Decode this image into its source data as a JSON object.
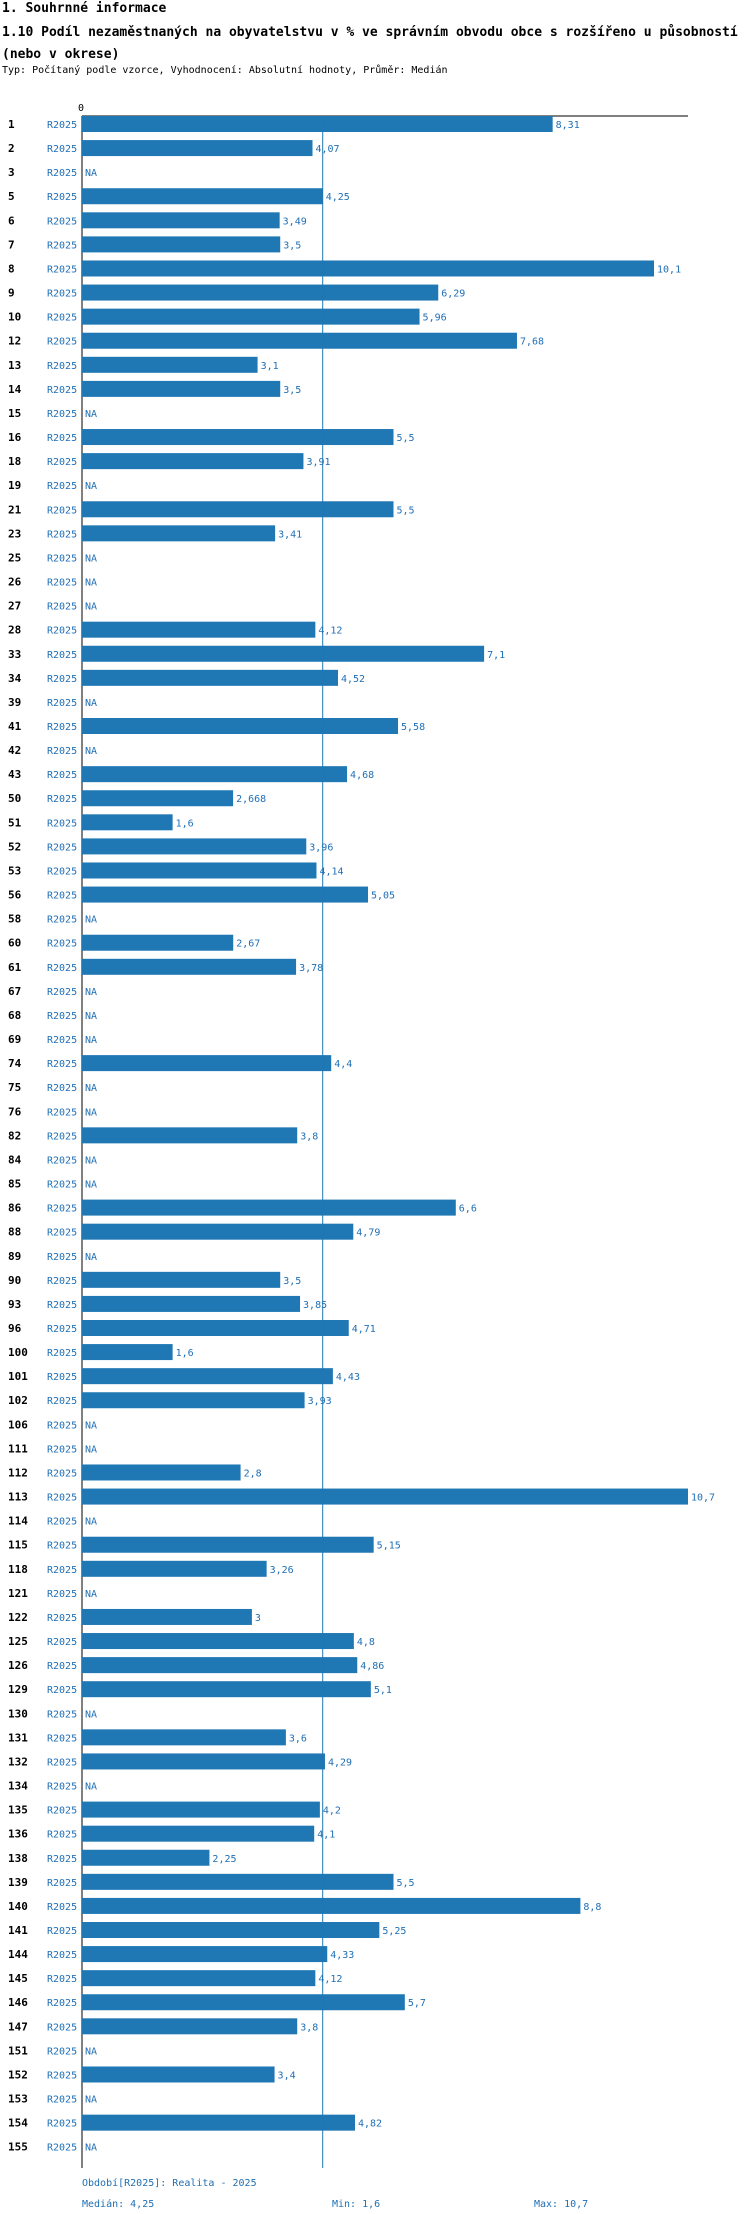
{
  "header": {
    "section": "1. Souhrnné informace",
    "title": "1.10 Podíl nezaměstnaných na obyvatelstvu v % ve správním obvodu obce s rozšířeno u působností (nebo v okrese)",
    "subtitle": "Typ: Počítaný podle vzorce, Vyhodnocení: Absolutní hodnoty, Průměr: Medián"
  },
  "footer": {
    "period": "Období[R2025]: Realita - 2025",
    "median": "Medián: 4,25",
    "min": "Min: 1,6",
    "max": "Max: 10,7"
  },
  "colors": {
    "bar": "#1f77b4",
    "text_blue": "#1f6fb5",
    "median_line": "#1f77b4"
  },
  "chart_data": {
    "type": "bar",
    "orientation": "horizontal",
    "axis_zero_label": "0",
    "period_label": "R2025",
    "median": 4.25,
    "min": 1.6,
    "max": 10.7,
    "xlim": [
      0,
      10.7
    ],
    "rows": [
      {
        "id": "1",
        "value": 8.31,
        "label": "8,31"
      },
      {
        "id": "2",
        "value": 4.07,
        "label": "4,07"
      },
      {
        "id": "3",
        "value": null,
        "label": "NA"
      },
      {
        "id": "5",
        "value": 4.25,
        "label": "4,25"
      },
      {
        "id": "6",
        "value": 3.49,
        "label": "3,49"
      },
      {
        "id": "7",
        "value": 3.5,
        "label": "3,5"
      },
      {
        "id": "8",
        "value": 10.1,
        "label": "10,1"
      },
      {
        "id": "9",
        "value": 6.29,
        "label": "6,29"
      },
      {
        "id": "10",
        "value": 5.96,
        "label": "5,96"
      },
      {
        "id": "12",
        "value": 7.68,
        "label": "7,68"
      },
      {
        "id": "13",
        "value": 3.1,
        "label": "3,1"
      },
      {
        "id": "14",
        "value": 3.5,
        "label": "3,5"
      },
      {
        "id": "15",
        "value": null,
        "label": "NA"
      },
      {
        "id": "16",
        "value": 5.5,
        "label": "5,5"
      },
      {
        "id": "18",
        "value": 3.91,
        "label": "3,91"
      },
      {
        "id": "19",
        "value": null,
        "label": "NA"
      },
      {
        "id": "21",
        "value": 5.5,
        "label": "5,5"
      },
      {
        "id": "23",
        "value": 3.41,
        "label": "3,41"
      },
      {
        "id": "25",
        "value": null,
        "label": "NA"
      },
      {
        "id": "26",
        "value": null,
        "label": "NA"
      },
      {
        "id": "27",
        "value": null,
        "label": "NA"
      },
      {
        "id": "28",
        "value": 4.12,
        "label": "4,12"
      },
      {
        "id": "33",
        "value": 7.1,
        "label": "7,1"
      },
      {
        "id": "34",
        "value": 4.52,
        "label": "4,52"
      },
      {
        "id": "39",
        "value": null,
        "label": "NA"
      },
      {
        "id": "41",
        "value": 5.58,
        "label": "5,58"
      },
      {
        "id": "42",
        "value": null,
        "label": "NA"
      },
      {
        "id": "43",
        "value": 4.68,
        "label": "4,68"
      },
      {
        "id": "50",
        "value": 2.668,
        "label": "2,668"
      },
      {
        "id": "51",
        "value": 1.6,
        "label": "1,6"
      },
      {
        "id": "52",
        "value": 3.96,
        "label": "3,96"
      },
      {
        "id": "53",
        "value": 4.14,
        "label": "4,14"
      },
      {
        "id": "56",
        "value": 5.05,
        "label": "5,05"
      },
      {
        "id": "58",
        "value": null,
        "label": "NA"
      },
      {
        "id": "60",
        "value": 2.67,
        "label": "2,67"
      },
      {
        "id": "61",
        "value": 3.78,
        "label": "3,78"
      },
      {
        "id": "67",
        "value": null,
        "label": "NA"
      },
      {
        "id": "68",
        "value": null,
        "label": "NA"
      },
      {
        "id": "69",
        "value": null,
        "label": "NA"
      },
      {
        "id": "74",
        "value": 4.4,
        "label": "4,4"
      },
      {
        "id": "75",
        "value": null,
        "label": "NA"
      },
      {
        "id": "76",
        "value": null,
        "label": "NA"
      },
      {
        "id": "82",
        "value": 3.8,
        "label": "3,8"
      },
      {
        "id": "84",
        "value": null,
        "label": "NA"
      },
      {
        "id": "85",
        "value": null,
        "label": "NA"
      },
      {
        "id": "86",
        "value": 6.6,
        "label": "6,6"
      },
      {
        "id": "88",
        "value": 4.79,
        "label": "4,79"
      },
      {
        "id": "89",
        "value": null,
        "label": "NA"
      },
      {
        "id": "90",
        "value": 3.5,
        "label": "3,5"
      },
      {
        "id": "93",
        "value": 3.85,
        "label": "3,85"
      },
      {
        "id": "96",
        "value": 4.71,
        "label": "4,71"
      },
      {
        "id": "100",
        "value": 1.6,
        "label": "1,6"
      },
      {
        "id": "101",
        "value": 4.43,
        "label": "4,43"
      },
      {
        "id": "102",
        "value": 3.93,
        "label": "3,93"
      },
      {
        "id": "106",
        "value": null,
        "label": "NA"
      },
      {
        "id": "111",
        "value": null,
        "label": "NA"
      },
      {
        "id": "112",
        "value": 2.8,
        "label": "2,8"
      },
      {
        "id": "113",
        "value": 10.7,
        "label": "10,7"
      },
      {
        "id": "114",
        "value": null,
        "label": "NA"
      },
      {
        "id": "115",
        "value": 5.15,
        "label": "5,15"
      },
      {
        "id": "118",
        "value": 3.26,
        "label": "3,26"
      },
      {
        "id": "121",
        "value": null,
        "label": "NA"
      },
      {
        "id": "122",
        "value": 3,
        "label": "3"
      },
      {
        "id": "125",
        "value": 4.8,
        "label": "4,8"
      },
      {
        "id": "126",
        "value": 4.86,
        "label": "4,86"
      },
      {
        "id": "129",
        "value": 5.1,
        "label": "5,1"
      },
      {
        "id": "130",
        "value": null,
        "label": "NA"
      },
      {
        "id": "131",
        "value": 3.6,
        "label": "3,6"
      },
      {
        "id": "132",
        "value": 4.29,
        "label": "4,29"
      },
      {
        "id": "134",
        "value": null,
        "label": "NA"
      },
      {
        "id": "135",
        "value": 4.2,
        "label": "4,2"
      },
      {
        "id": "136",
        "value": 4.1,
        "label": "4,1"
      },
      {
        "id": "138",
        "value": 2.25,
        "label": "2,25"
      },
      {
        "id": "139",
        "value": 5.5,
        "label": "5,5"
      },
      {
        "id": "140",
        "value": 8.8,
        "label": "8,8"
      },
      {
        "id": "141",
        "value": 5.25,
        "label": "5,25"
      },
      {
        "id": "144",
        "value": 4.33,
        "label": "4,33"
      },
      {
        "id": "145",
        "value": 4.12,
        "label": "4,12"
      },
      {
        "id": "146",
        "value": 5.7,
        "label": "5,7"
      },
      {
        "id": "147",
        "value": 3.8,
        "label": "3,8"
      },
      {
        "id": "151",
        "value": null,
        "label": "NA"
      },
      {
        "id": "152",
        "value": 3.4,
        "label": "3,4"
      },
      {
        "id": "153",
        "value": null,
        "label": "NA"
      },
      {
        "id": "154",
        "value": 4.82,
        "label": "4,82"
      },
      {
        "id": "155",
        "value": null,
        "label": "NA"
      }
    ]
  }
}
